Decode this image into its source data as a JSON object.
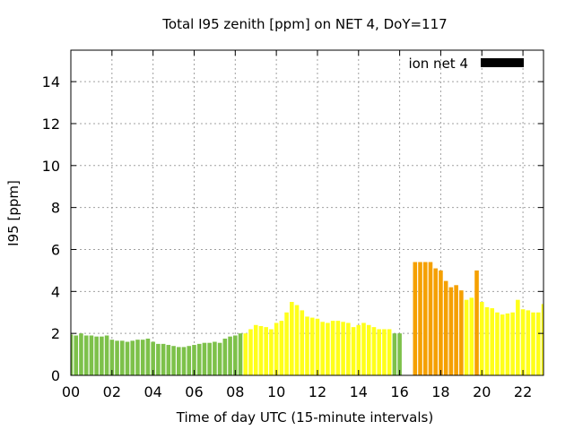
{
  "chart_data": {
    "type": "bar",
    "title": "Total I95 zenith [ppm] on NET 4, DoY=117",
    "xlabel": "Time of day UTC (15-minute intervals)",
    "ylabel": "I95 [ppm]",
    "xlim": [
      0,
      23
    ],
    "ylim": [
      0,
      15.5
    ],
    "xticks": [
      "00",
      "02",
      "04",
      "06",
      "08",
      "10",
      "12",
      "14",
      "16",
      "18",
      "20",
      "22"
    ],
    "xtick_values": [
      0,
      2,
      4,
      6,
      8,
      10,
      12,
      14,
      16,
      18,
      20,
      22
    ],
    "yticks": [
      0,
      2,
      4,
      6,
      8,
      10,
      12,
      14
    ],
    "grid": true,
    "legend": {
      "label": "ion net 4",
      "color": "#000000",
      "placement": "top-right"
    },
    "bar_width_hours": 0.2,
    "colors": {
      "low": "#7dc14a",
      "mid": "#ffff1a",
      "high": "#f5a000"
    },
    "series": [
      {
        "values": [
          [
            0.0,
            1.95,
            "low"
          ],
          [
            0.25,
            1.9,
            "low"
          ],
          [
            0.5,
            2.0,
            "low"
          ],
          [
            0.75,
            1.9,
            "low"
          ],
          [
            1.0,
            1.9,
            "low"
          ],
          [
            1.25,
            1.85,
            "low"
          ],
          [
            1.5,
            1.85,
            "low"
          ],
          [
            1.75,
            1.9,
            "low"
          ],
          [
            2.0,
            1.7,
            "low"
          ],
          [
            2.25,
            1.65,
            "low"
          ],
          [
            2.5,
            1.65,
            "low"
          ],
          [
            2.75,
            1.6,
            "low"
          ],
          [
            3.0,
            1.65,
            "low"
          ],
          [
            3.25,
            1.7,
            "low"
          ],
          [
            3.5,
            1.7,
            "low"
          ],
          [
            3.75,
            1.75,
            "low"
          ],
          [
            4.0,
            1.6,
            "low"
          ],
          [
            4.25,
            1.5,
            "low"
          ],
          [
            4.5,
            1.5,
            "low"
          ],
          [
            4.75,
            1.45,
            "low"
          ],
          [
            5.0,
            1.4,
            "low"
          ],
          [
            5.25,
            1.35,
            "low"
          ],
          [
            5.5,
            1.35,
            "low"
          ],
          [
            5.75,
            1.4,
            "low"
          ],
          [
            6.0,
            1.45,
            "low"
          ],
          [
            6.25,
            1.5,
            "low"
          ],
          [
            6.5,
            1.55,
            "low"
          ],
          [
            6.75,
            1.55,
            "low"
          ],
          [
            7.0,
            1.6,
            "low"
          ],
          [
            7.25,
            1.55,
            "low"
          ],
          [
            7.5,
            1.75,
            "low"
          ],
          [
            7.75,
            1.85,
            "low"
          ],
          [
            8.0,
            1.9,
            "low"
          ],
          [
            8.25,
            2.0,
            "low"
          ],
          [
            8.5,
            2.0,
            "mid"
          ],
          [
            8.75,
            2.2,
            "mid"
          ],
          [
            9.0,
            2.4,
            "mid"
          ],
          [
            9.25,
            2.35,
            "mid"
          ],
          [
            9.5,
            2.3,
            "mid"
          ],
          [
            9.75,
            2.2,
            "mid"
          ],
          [
            10.0,
            2.5,
            "mid"
          ],
          [
            10.25,
            2.6,
            "mid"
          ],
          [
            10.5,
            3.0,
            "mid"
          ],
          [
            10.75,
            3.5,
            "mid"
          ],
          [
            11.0,
            3.35,
            "mid"
          ],
          [
            11.25,
            3.1,
            "mid"
          ],
          [
            11.5,
            2.8,
            "mid"
          ],
          [
            11.75,
            2.75,
            "mid"
          ],
          [
            12.0,
            2.7,
            "mid"
          ],
          [
            12.25,
            2.55,
            "mid"
          ],
          [
            12.5,
            2.5,
            "mid"
          ],
          [
            12.75,
            2.6,
            "mid"
          ],
          [
            13.0,
            2.6,
            "mid"
          ],
          [
            13.25,
            2.55,
            "mid"
          ],
          [
            13.5,
            2.5,
            "mid"
          ],
          [
            13.75,
            2.3,
            "mid"
          ],
          [
            14.0,
            2.4,
            "mid"
          ],
          [
            14.25,
            2.5,
            "mid"
          ],
          [
            14.5,
            2.4,
            "mid"
          ],
          [
            14.75,
            2.3,
            "mid"
          ],
          [
            15.0,
            2.2,
            "mid"
          ],
          [
            15.25,
            2.2,
            "mid"
          ],
          [
            15.5,
            2.2,
            "mid"
          ],
          [
            15.75,
            2.0,
            "low"
          ],
          [
            16.0,
            2.0,
            "low"
          ],
          [
            16.75,
            5.4,
            "high"
          ],
          [
            17.0,
            5.4,
            "high"
          ],
          [
            17.25,
            5.4,
            "high"
          ],
          [
            17.5,
            5.4,
            "high"
          ],
          [
            17.75,
            5.1,
            "high"
          ],
          [
            18.0,
            5.0,
            "high"
          ],
          [
            18.25,
            4.5,
            "high"
          ],
          [
            18.5,
            4.2,
            "high"
          ],
          [
            18.75,
            4.3,
            "high"
          ],
          [
            19.0,
            4.05,
            "high"
          ],
          [
            19.25,
            3.6,
            "mid"
          ],
          [
            19.5,
            3.7,
            "mid"
          ],
          [
            19.75,
            5.0,
            "high"
          ],
          [
            20.0,
            3.5,
            "mid"
          ],
          [
            20.25,
            3.25,
            "mid"
          ],
          [
            20.5,
            3.2,
            "mid"
          ],
          [
            20.75,
            3.0,
            "mid"
          ],
          [
            21.0,
            2.9,
            "mid"
          ],
          [
            21.25,
            2.95,
            "mid"
          ],
          [
            21.5,
            3.0,
            "mid"
          ],
          [
            21.75,
            3.6,
            "mid"
          ],
          [
            22.0,
            3.15,
            "mid"
          ],
          [
            22.25,
            3.1,
            "mid"
          ],
          [
            22.5,
            3.0,
            "mid"
          ],
          [
            22.75,
            3.0,
            "mid"
          ],
          [
            23.0,
            3.4,
            "mid"
          ]
        ]
      }
    ]
  }
}
